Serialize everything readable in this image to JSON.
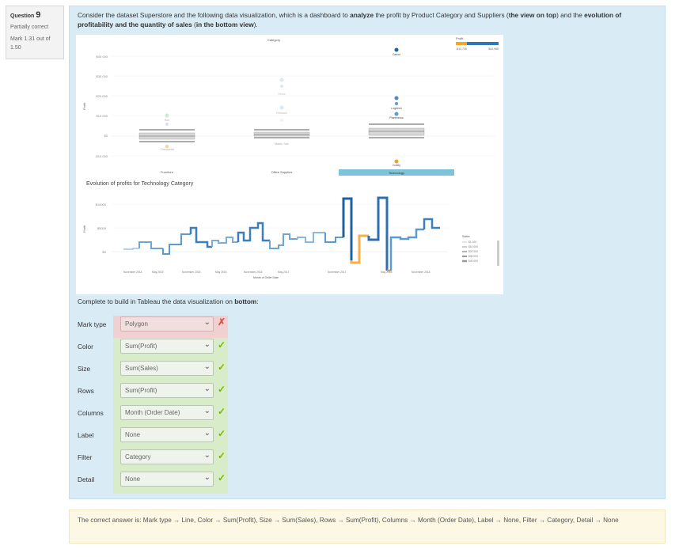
{
  "info": {
    "question_label": "Question",
    "question_number": "9",
    "state": "Partially correct",
    "mark_line1": "Mark 1.31 out of",
    "mark_line2": "1.50"
  },
  "question": {
    "text_parts": [
      "Consider the dataset Superstore and the following data visualization, which is a dashboard to ",
      "analyze",
      " the profit by Product Category and Suppliers (",
      "the view on top",
      ") and the ",
      "evolution of profitability and the quantity of sales",
      " (",
      "in the bottom view",
      ")."
    ],
    "instruction_prefix": "Complete to build in Tableau the data visualization on ",
    "instruction_bold": "bottom",
    "instruction_suffix": ":"
  },
  "viz": {
    "top": {
      "header": "Category",
      "profit_legend_title": "Profit",
      "profit_legend_min": "-$12,726",
      "profit_legend_max": "$43,965",
      "y_axis_title": "Profit",
      "y_ticks": [
        "$40 000",
        "$30 000",
        "$20 000",
        "$10 000",
        "$0",
        "-$10 000"
      ],
      "categories": [
        "Furniture",
        "Office Supplies",
        "Technology"
      ],
      "point_labels": [
        "Canon",
        "Logitech",
        "Plantronics",
        "Cubify",
        "Hon",
        "Chromcraft",
        "Xerox",
        "Fellowes",
        "Martin Yale"
      ]
    },
    "bottom": {
      "title": "Evolution of profits for Technology Category",
      "y_axis_title": "Profit",
      "y_ticks": [
        "$10000",
        "$5000",
        "$0"
      ],
      "x_ticks": [
        "November 2014",
        "May 2015",
        "November 2015",
        "May 2016",
        "November 2016",
        "May 2017",
        "November 2017",
        "May 2018",
        "November 2018"
      ],
      "x_axis_title": "Month of Order Date",
      "sales_legend_title": "Sales",
      "sales_legend_items": [
        "$1 100",
        "$10 000",
        "$20 000",
        "$30 000",
        "$40 000"
      ]
    }
  },
  "answers": [
    {
      "label": "Mark type",
      "value": "Polygon",
      "correct": false
    },
    {
      "label": "Color",
      "value": "Sum(Profit)",
      "correct": true
    },
    {
      "label": "Size",
      "value": "Sum(Sales)",
      "correct": true
    },
    {
      "label": "Rows",
      "value": "Sum(Profit)",
      "correct": true
    },
    {
      "label": "Columns",
      "value": "Month (Order Date)",
      "correct": true
    },
    {
      "label": "Label",
      "value": "None",
      "correct": true
    },
    {
      "label": "Filter",
      "value": "Category",
      "correct": true
    },
    {
      "label": "Detail",
      "value": "None",
      "correct": true
    }
  ],
  "feedback": {
    "text": "The correct answer is: Mark type → Line, Color → Sum(Profit), Size → Sum(Sales), Rows → Sum(Profit), Columns → Month (Order Date), Label → None, Filter → Category, Detail → None"
  },
  "colors": {
    "panel_bg": "#d9ecf5",
    "correct_green": "#7ab800",
    "incorrect_red": "#d9534f",
    "line_blue": "#3b7fbd",
    "line_orange": "#f0a030",
    "highlight_tab": "#7ec4d8"
  },
  "icons": {
    "chevron": "chevron-down-icon",
    "check": "check-icon",
    "cross": "cross-icon"
  }
}
